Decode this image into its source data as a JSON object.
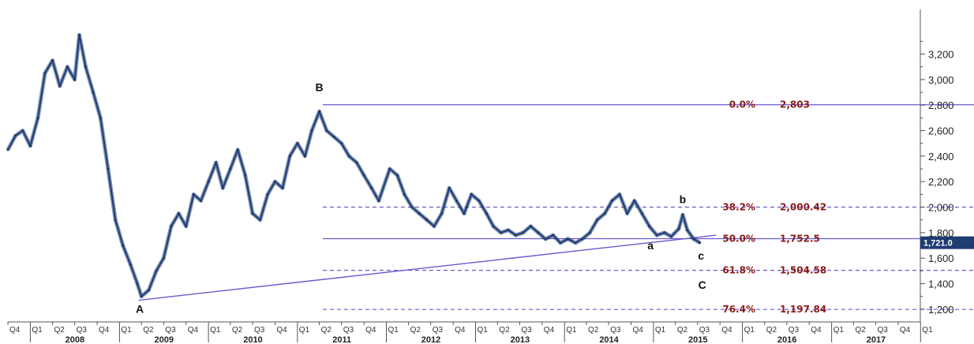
{
  "chart_data": {
    "type": "line",
    "title": "",
    "xlabel": "",
    "ylabel": "",
    "xlim": [
      "2007-10-01",
      "2017-12-31"
    ],
    "ylim": [
      1100,
      3550
    ],
    "grid": false,
    "legend": "none",
    "y_ticks": [
      1200,
      1400,
      1600,
      1800,
      2000,
      2200,
      2400,
      2600,
      2800,
      3000,
      3200
    ],
    "y_tick_labels": [
      "1,200",
      "1,400",
      "1,600",
      "1,800",
      "2,000",
      "2,200",
      "2,400",
      "2,600",
      "2,800",
      "3,000",
      "3,200"
    ],
    "quarter_ticks": [
      {
        "date": "2007-10-01",
        "label": "Q4"
      },
      {
        "date": "2008-01-01",
        "label": "Q1"
      },
      {
        "date": "2008-04-01",
        "label": "Q2"
      },
      {
        "date": "2008-07-01",
        "label": "Q3"
      },
      {
        "date": "2008-10-01",
        "label": "Q4"
      },
      {
        "date": "2009-01-01",
        "label": "Q1"
      },
      {
        "date": "2009-04-01",
        "label": "Q2"
      },
      {
        "date": "2009-07-01",
        "label": "Q3"
      },
      {
        "date": "2009-10-01",
        "label": "Q4"
      },
      {
        "date": "2010-01-01",
        "label": "Q1"
      },
      {
        "date": "2010-04-01",
        "label": "Q2"
      },
      {
        "date": "2010-07-01",
        "label": "Q3"
      },
      {
        "date": "2010-10-01",
        "label": "Q4"
      },
      {
        "date": "2011-01-01",
        "label": "Q1"
      },
      {
        "date": "2011-04-01",
        "label": "Q2"
      },
      {
        "date": "2011-07-01",
        "label": "Q3"
      },
      {
        "date": "2011-10-01",
        "label": "Q4"
      },
      {
        "date": "2012-01-01",
        "label": "Q1"
      },
      {
        "date": "2012-04-01",
        "label": "Q2"
      },
      {
        "date": "2012-07-01",
        "label": "Q3"
      },
      {
        "date": "2012-10-01",
        "label": "Q4"
      },
      {
        "date": "2013-01-01",
        "label": "Q1"
      },
      {
        "date": "2013-04-01",
        "label": "Q2"
      },
      {
        "date": "2013-07-01",
        "label": "Q3"
      },
      {
        "date": "2013-10-01",
        "label": "Q4"
      },
      {
        "date": "2014-01-01",
        "label": "Q1"
      },
      {
        "date": "2014-04-01",
        "label": "Q2"
      },
      {
        "date": "2014-07-01",
        "label": "Q3"
      },
      {
        "date": "2014-10-01",
        "label": "Q4"
      },
      {
        "date": "2015-01-01",
        "label": "Q1"
      },
      {
        "date": "2015-04-01",
        "label": "Q2"
      },
      {
        "date": "2015-07-01",
        "label": "Q3"
      },
      {
        "date": "2015-10-01",
        "label": "Q4"
      },
      {
        "date": "2016-01-01",
        "label": "Q1"
      },
      {
        "date": "2016-04-01",
        "label": "Q2"
      },
      {
        "date": "2016-07-01",
        "label": "Q3"
      },
      {
        "date": "2016-10-01",
        "label": "Q4"
      },
      {
        "date": "2017-01-01",
        "label": "Q1"
      },
      {
        "date": "2017-04-01",
        "label": "Q2"
      },
      {
        "date": "2017-07-01",
        "label": "Q3"
      },
      {
        "date": "2017-10-01",
        "label": "Q4"
      },
      {
        "date": "2018-01-01",
        "label": "Q1"
      }
    ],
    "years": [
      "2008",
      "2009",
      "2010",
      "2011",
      "2012",
      "2013",
      "2014",
      "2015",
      "2016",
      "2017"
    ],
    "series": [
      {
        "color": "#1f3c73",
        "points": [
          [
            "2007-10-01",
            2450
          ],
          [
            "2007-11-01",
            2560
          ],
          [
            "2007-12-01",
            2600
          ],
          [
            "2008-01-01",
            2480
          ],
          [
            "2008-02-01",
            2700
          ],
          [
            "2008-03-01",
            3050
          ],
          [
            "2008-04-01",
            3150
          ],
          [
            "2008-05-01",
            2950
          ],
          [
            "2008-06-01",
            3100
          ],
          [
            "2008-07-01",
            3000
          ],
          [
            "2008-07-20",
            3350
          ],
          [
            "2008-08-15",
            3100
          ],
          [
            "2008-09-15",
            2900
          ],
          [
            "2008-10-15",
            2700
          ],
          [
            "2008-11-15",
            2300
          ],
          [
            "2008-12-15",
            1900
          ],
          [
            "2009-01-15",
            1700
          ],
          [
            "2009-02-15",
            1550
          ],
          [
            "2009-03-15",
            1400
          ],
          [
            "2009-04-01",
            1300
          ],
          [
            "2009-05-01",
            1350
          ],
          [
            "2009-06-01",
            1500
          ],
          [
            "2009-07-01",
            1600
          ],
          [
            "2009-08-01",
            1850
          ],
          [
            "2009-09-01",
            1950
          ],
          [
            "2009-10-01",
            1850
          ],
          [
            "2009-11-01",
            2100
          ],
          [
            "2009-12-01",
            2050
          ],
          [
            "2010-01-01",
            2200
          ],
          [
            "2010-02-01",
            2350
          ],
          [
            "2010-03-01",
            2150
          ],
          [
            "2010-04-01",
            2300
          ],
          [
            "2010-05-01",
            2450
          ],
          [
            "2010-06-01",
            2250
          ],
          [
            "2010-07-01",
            1950
          ],
          [
            "2010-08-01",
            1900
          ],
          [
            "2010-09-01",
            2100
          ],
          [
            "2010-10-01",
            2200
          ],
          [
            "2010-11-01",
            2150
          ],
          [
            "2010-12-01",
            2400
          ],
          [
            "2011-01-01",
            2500
          ],
          [
            "2011-02-01",
            2400
          ],
          [
            "2011-03-01",
            2600
          ],
          [
            "2011-04-01",
            2750
          ],
          [
            "2011-05-01",
            2600
          ],
          [
            "2011-06-01",
            2550
          ],
          [
            "2011-07-01",
            2500
          ],
          [
            "2011-08-01",
            2400
          ],
          [
            "2011-09-01",
            2350
          ],
          [
            "2011-10-01",
            2250
          ],
          [
            "2011-11-01",
            2150
          ],
          [
            "2011-12-01",
            2050
          ],
          [
            "2012-01-15",
            2300
          ],
          [
            "2012-02-15",
            2250
          ],
          [
            "2012-03-15",
            2100
          ],
          [
            "2012-04-15",
            2000
          ],
          [
            "2012-05-15",
            1950
          ],
          [
            "2012-06-15",
            1900
          ],
          [
            "2012-07-15",
            1850
          ],
          [
            "2012-08-15",
            1950
          ],
          [
            "2012-09-15",
            2150
          ],
          [
            "2012-10-15",
            2050
          ],
          [
            "2012-11-15",
            1950
          ],
          [
            "2012-12-15",
            2100
          ],
          [
            "2013-01-15",
            2050
          ],
          [
            "2013-02-15",
            1950
          ],
          [
            "2013-03-15",
            1850
          ],
          [
            "2013-04-15",
            1800
          ],
          [
            "2013-05-15",
            1820
          ],
          [
            "2013-06-15",
            1780
          ],
          [
            "2013-07-15",
            1800
          ],
          [
            "2013-08-15",
            1850
          ],
          [
            "2013-09-15",
            1800
          ],
          [
            "2013-10-15",
            1750
          ],
          [
            "2013-11-15",
            1780
          ],
          [
            "2013-12-15",
            1720
          ],
          [
            "2014-01-15",
            1750
          ],
          [
            "2014-02-15",
            1720
          ],
          [
            "2014-03-15",
            1750
          ],
          [
            "2014-04-15",
            1800
          ],
          [
            "2014-05-15",
            1900
          ],
          [
            "2014-06-15",
            1950
          ],
          [
            "2014-07-15",
            2050
          ],
          [
            "2014-08-15",
            2100
          ],
          [
            "2014-09-15",
            1950
          ],
          [
            "2014-10-15",
            2050
          ],
          [
            "2014-11-15",
            1950
          ],
          [
            "2014-12-15",
            1850
          ],
          [
            "2015-01-15",
            1780
          ],
          [
            "2015-02-15",
            1800
          ],
          [
            "2015-03-15",
            1770
          ],
          [
            "2015-04-15",
            1830
          ],
          [
            "2015-05-01",
            1940
          ],
          [
            "2015-05-20",
            1820
          ],
          [
            "2015-06-15",
            1750
          ],
          [
            "2015-07-10",
            1721
          ]
        ]
      }
    ],
    "last_value": {
      "value": 1721,
      "label": "1,721.0"
    },
    "fib_levels": [
      {
        "pct": "0.0%",
        "value": 2803,
        "label": "2,803",
        "style": "solid",
        "start": "2011-04-15"
      },
      {
        "pct": "38.2%",
        "value": 2000.42,
        "label": "2,000.42",
        "style": "dashed",
        "start": "2011-04-15"
      },
      {
        "pct": "50.0%",
        "value": 1752.5,
        "label": "1,752.5",
        "style": "solid",
        "start": "2011-04-15"
      },
      {
        "pct": "61.8%",
        "value": 1504.58,
        "label": "1,504.58",
        "style": "dashed",
        "start": "2011-04-15"
      },
      {
        "pct": "76.4%",
        "value": 1197.84,
        "label": "1,197.84",
        "style": "dashed",
        "start": "2011-04-15"
      }
    ],
    "trendline": {
      "from": [
        "2009-03-20",
        1270
      ],
      "to": [
        "2015-09-15",
        1780
      ]
    },
    "wave_labels": [
      {
        "text": "A",
        "date": "2009-03-25",
        "value": 1170
      },
      {
        "text": "B",
        "date": "2011-04-01",
        "value": 2910
      },
      {
        "text": "a",
        "date": "2014-12-20",
        "value": 1670
      },
      {
        "text": "b",
        "date": "2015-05-01",
        "value": 2030
      },
      {
        "text": "c",
        "date": "2015-07-15",
        "value": 1590
      },
      {
        "text": "C",
        "date": "2015-07-20",
        "value": 1360
      }
    ],
    "colors": {
      "price": "#1f3c73",
      "fib_line": "#6a5acd",
      "fib_text": "#8b1a1a",
      "trend": "#6a5acd",
      "last_box": "#1f3c73",
      "axis": "#555555"
    }
  }
}
